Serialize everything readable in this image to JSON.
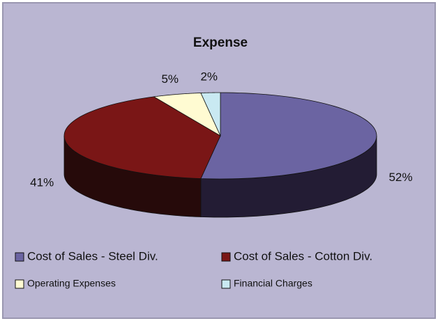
{
  "chart_data": {
    "type": "pie",
    "title": "Expense",
    "categories": [
      "Cost of Sales - Steel Div.",
      "Cost of Sales - Cotton Div.",
      "Operating Expenses",
      "Financial Charges"
    ],
    "values": [
      52,
      41,
      5,
      2
    ],
    "value_labels": [
      "52%",
      "41%",
      "5%",
      "2%"
    ],
    "colors": [
      "#6b64a2",
      "#7a1616",
      "#fffbd2",
      "#c9e9f2"
    ],
    "side_colors": [
      "#231c34",
      "#260a0a",
      "#8a8770",
      "#6f8a90"
    ],
    "legend": "bottom"
  }
}
